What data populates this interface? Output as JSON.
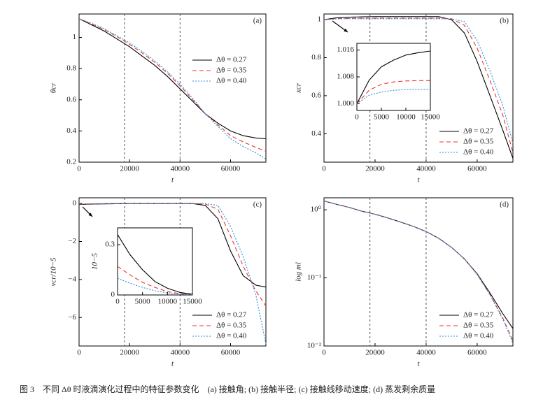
{
  "chart_data": [
    {
      "type": "line",
      "label": "(a)",
      "xlabel": "t",
      "ylabel": "θcr",
      "xlim": [
        0,
        74000
      ],
      "ylim": [
        0.2,
        1.15
      ],
      "xticks": [
        0,
        20000,
        40000,
        60000
      ],
      "yticks": [
        0.2,
        0.4,
        0.6,
        0.8,
        1.0
      ],
      "vlines": [
        18000,
        40000
      ],
      "legend": "center right",
      "x": [
        0,
        5000,
        10000,
        15000,
        20000,
        25000,
        30000,
        35000,
        40000,
        45000,
        50000,
        55000,
        60000,
        65000,
        70000,
        74000
      ],
      "series": [
        {
          "name": "Δθ = 0.27",
          "color": "#000000",
          "dash": "solid",
          "values": [
            1.12,
            1.08,
            1.04,
            0.99,
            0.94,
            0.88,
            0.82,
            0.75,
            0.67,
            0.59,
            0.51,
            0.45,
            0.4,
            0.37,
            0.355,
            0.35
          ]
        },
        {
          "name": "Δθ = 0.35",
          "color": "#e8372e",
          "dash": "dashed",
          "values": [
            1.12,
            1.085,
            1.05,
            1.005,
            0.955,
            0.9,
            0.84,
            0.77,
            0.69,
            0.6,
            0.51,
            0.44,
            0.37,
            0.33,
            0.295,
            0.27
          ]
        },
        {
          "name": "Δθ = 0.40",
          "color": "#2b8fe0",
          "dash": "dotted",
          "values": [
            1.12,
            1.09,
            1.055,
            1.01,
            0.965,
            0.91,
            0.85,
            0.78,
            0.7,
            0.61,
            0.51,
            0.43,
            0.35,
            0.3,
            0.26,
            0.22
          ]
        }
      ]
    },
    {
      "type": "line",
      "label": "(b)",
      "xlabel": "t",
      "ylabel": "xcr",
      "xlim": [
        0,
        74000
      ],
      "ylim": [
        0.25,
        1.03
      ],
      "xticks": [
        0,
        20000,
        40000,
        60000
      ],
      "yticks": [
        0.4,
        0.6,
        0.8,
        1.0
      ],
      "vlines": [
        18000,
        40000
      ],
      "legend": "lower right",
      "x": [
        0,
        5000,
        10000,
        15000,
        20000,
        25000,
        30000,
        35000,
        40000,
        45000,
        50000,
        55000,
        60000,
        65000,
        70000,
        74000
      ],
      "series": [
        {
          "name": "Δθ = 0.27",
          "color": "#000000",
          "dash": "solid",
          "values": [
            1.0,
            1.01,
            1.013,
            1.015,
            1.016,
            1.016,
            1.016,
            1.016,
            1.016,
            1.016,
            1.0,
            0.93,
            0.78,
            0.6,
            0.42,
            0.27
          ]
        },
        {
          "name": "Δθ = 0.35",
          "color": "#e8372e",
          "dash": "dashed",
          "values": [
            1.0,
            1.006,
            1.007,
            1.008,
            1.008,
            1.008,
            1.008,
            1.008,
            1.008,
            1.008,
            1.005,
            0.97,
            0.85,
            0.68,
            0.5,
            0.3
          ]
        },
        {
          "name": "Δθ = 0.40",
          "color": "#2b8fe0",
          "dash": "dotted",
          "values": [
            1.0,
            1.004,
            1.005,
            1.005,
            1.005,
            1.005,
            1.005,
            1.005,
            1.005,
            1.005,
            1.004,
            0.99,
            0.89,
            0.73,
            0.55,
            0.35
          ]
        }
      ],
      "inset": {
        "xlim": [
          0,
          15000
        ],
        "ylim": [
          0.998,
          1.018
        ],
        "xticks": [
          0,
          5000,
          10000,
          15000
        ],
        "yticks": [
          {
            "value": 1,
            "label": "1.000"
          },
          {
            "value": 1.008,
            "label": "1.008"
          },
          {
            "value": 1.016,
            "label": "1.016"
          }
        ],
        "x": [
          0,
          2500,
          5000,
          7500,
          10000,
          12500,
          15000
        ],
        "series": [
          {
            "color": "#000000",
            "dash": "solid",
            "values": [
              1.0,
              1.007,
              1.011,
              1.013,
              1.0145,
              1.0152,
              1.0157
            ]
          },
          {
            "color": "#e8372e",
            "dash": "dashed",
            "values": [
              1.0,
              1.004,
              1.0058,
              1.0065,
              1.0068,
              1.0069,
              1.0069
            ]
          },
          {
            "color": "#2b8fe0",
            "dash": "dotted",
            "values": [
              1.0,
              1.0025,
              1.0035,
              1.004,
              1.0042,
              1.0043,
              1.0043
            ]
          }
        ]
      }
    },
    {
      "type": "line",
      "label": "(c)",
      "xlabel": "t",
      "ylabel": "vcr/10−5",
      "xlim": [
        0,
        74000
      ],
      "ylim": [
        -7.5,
        0.3
      ],
      "xticks": [
        0,
        20000,
        40000,
        60000
      ],
      "yticks": [
        {
          "value": -6,
          "label": "−6"
        },
        {
          "value": -4,
          "label": "−4"
        },
        {
          "value": -2,
          "label": "−2"
        },
        0
      ],
      "vlines": [
        18000,
        40000
      ],
      "legend": "lower right",
      "x": [
        0,
        5000,
        10000,
        15000,
        20000,
        25000,
        30000,
        35000,
        40000,
        45000,
        50000,
        55000,
        60000,
        65000,
        70000,
        74000
      ],
      "series": [
        {
          "name": "Δθ = 0.27",
          "color": "#000000",
          "dash": "solid",
          "values": [
            -0.05,
            -0.03,
            -0.02,
            -0.01,
            0,
            0,
            0,
            0,
            0,
            0,
            -0.1,
            -0.8,
            -2.5,
            -3.8,
            -4.3,
            -4.4
          ]
        },
        {
          "name": "Δθ = 0.35",
          "color": "#e8372e",
          "dash": "dashed",
          "values": [
            -0.03,
            -0.02,
            -0.01,
            0,
            0,
            0,
            0,
            0,
            0,
            0,
            -0.03,
            -0.3,
            -1.7,
            -3.3,
            -4.6,
            -5.4
          ]
        },
        {
          "name": "Δθ = 0.40",
          "color": "#2b8fe0",
          "dash": "dotted",
          "values": [
            -0.02,
            -0.01,
            0,
            0,
            0,
            0,
            0,
            0,
            0,
            0,
            0,
            -0.1,
            -1.2,
            -2.8,
            -4.8,
            -7.4
          ]
        }
      ],
      "inset": {
        "ylabel": "10−5",
        "xlim": [
          0,
          15000
        ],
        "ylim": [
          0,
          0.4
        ],
        "xticks": [
          0,
          5000,
          10000,
          15000
        ],
        "yticks": [
          0,
          0.3
        ],
        "x": [
          0,
          2500,
          5000,
          7500,
          10000,
          12500,
          15000
        ],
        "series": [
          {
            "color": "#000000",
            "dash": "solid",
            "values": [
              0.36,
              0.24,
              0.15,
              0.08,
              0.04,
              0.015,
              0.005
            ]
          },
          {
            "color": "#e8372e",
            "dash": "dashed",
            "values": [
              0.17,
              0.12,
              0.075,
              0.045,
              0.02,
              0.008,
              0.003
            ]
          },
          {
            "color": "#2b8fe0",
            "dash": "dotted",
            "values": [
              0.1,
              0.07,
              0.045,
              0.025,
              0.012,
              0.005,
              0.002
            ]
          }
        ]
      }
    },
    {
      "type": "line",
      "label": "(d)",
      "xlabel": "t",
      "ylabel": "log ml",
      "log_y": true,
      "xlim": [
        0,
        74000
      ],
      "ylim": [
        0.01,
        1.5
      ],
      "xticks": [
        0,
        20000,
        40000,
        60000
      ],
      "yticks": [
        {
          "value": 0.01,
          "label": "10⁻²"
        },
        {
          "value": 0.1,
          "label": "10⁻¹"
        },
        {
          "value": 1,
          "label": "10⁰"
        }
      ],
      "vlines": [
        18000,
        40000
      ],
      "legend": "lower right",
      "x": [
        0,
        5000,
        10000,
        15000,
        20000,
        25000,
        30000,
        35000,
        40000,
        45000,
        50000,
        55000,
        60000,
        65000,
        70000,
        74000
      ],
      "series": [
        {
          "name": "Δθ = 0.27",
          "color": "#000000",
          "dash": "solid",
          "values": [
            1.35,
            1.2,
            1.08,
            0.95,
            0.86,
            0.76,
            0.66,
            0.57,
            0.48,
            0.38,
            0.28,
            0.19,
            0.115,
            0.06,
            0.03,
            0.018
          ]
        },
        {
          "name": "Δθ = 0.35",
          "color": "#e8372e",
          "dash": "dashed",
          "values": [
            1.35,
            1.2,
            1.08,
            0.95,
            0.86,
            0.76,
            0.66,
            0.57,
            0.48,
            0.38,
            0.28,
            0.19,
            0.113,
            0.057,
            0.026,
            0.012
          ]
        },
        {
          "name": "Δθ = 0.40",
          "color": "#2b8fe0",
          "dash": "dotted",
          "values": [
            1.35,
            1.2,
            1.08,
            0.95,
            0.86,
            0.76,
            0.66,
            0.57,
            0.48,
            0.38,
            0.28,
            0.19,
            0.112,
            0.056,
            0.025,
            0.011
          ]
        }
      ]
    }
  ],
  "caption": "图 3　不同 Δθ 时液滴演化过程中的特征参数变化　(a) 接触角; (b) 接触半径; (c) 接触线移动速度; (d) 蒸发剩余质量"
}
